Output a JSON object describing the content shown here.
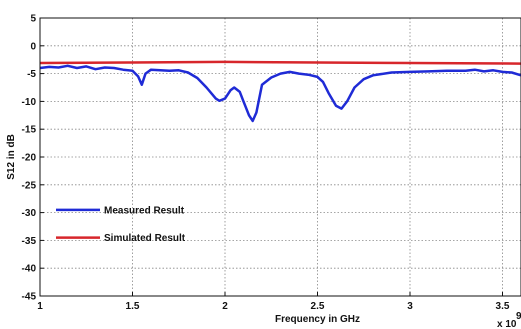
{
  "chart_data": {
    "type": "line",
    "xlabel": "Frequency in GHz",
    "ylabel": "S12 in dB",
    "x_exponent_label": "x 10",
    "x_exponent_power": "9",
    "xlim": [
      1,
      3.6
    ],
    "ylim": [
      -45,
      5
    ],
    "x_ticks": [
      1,
      1.5,
      2,
      2.5,
      3,
      3.5
    ],
    "x_tick_labels": [
      "1",
      "1.5",
      "2",
      "2.5",
      "3",
      "3.5"
    ],
    "y_ticks": [
      5,
      0,
      -5,
      -10,
      -15,
      -20,
      -25,
      -30,
      -35,
      -40,
      -45
    ],
    "y_tick_labels": [
      "5",
      "0",
      "-5",
      "-10",
      "-15",
      "-20",
      "-25",
      "-30",
      "-35",
      "-40",
      "-45"
    ],
    "grid": true,
    "legend_placement": "lower-left",
    "series": [
      {
        "name": "Measured Result",
        "color": "#1f2bd6",
        "points": [
          [
            1.0,
            -4.0
          ],
          [
            1.05,
            -3.8
          ],
          [
            1.1,
            -3.9
          ],
          [
            1.15,
            -3.6
          ],
          [
            1.2,
            -4.0
          ],
          [
            1.25,
            -3.7
          ],
          [
            1.3,
            -4.2
          ],
          [
            1.35,
            -3.9
          ],
          [
            1.4,
            -4.0
          ],
          [
            1.45,
            -4.3
          ],
          [
            1.5,
            -4.5
          ],
          [
            1.53,
            -5.5
          ],
          [
            1.55,
            -7.0
          ],
          [
            1.57,
            -5.0
          ],
          [
            1.6,
            -4.3
          ],
          [
            1.7,
            -4.5
          ],
          [
            1.75,
            -4.4
          ],
          [
            1.8,
            -4.8
          ],
          [
            1.85,
            -5.8
          ],
          [
            1.9,
            -7.5
          ],
          [
            1.95,
            -9.5
          ],
          [
            1.97,
            -9.9
          ],
          [
            2.0,
            -9.5
          ],
          [
            2.03,
            -8.0
          ],
          [
            2.05,
            -7.5
          ],
          [
            2.08,
            -8.3
          ],
          [
            2.1,
            -10.0
          ],
          [
            2.13,
            -12.5
          ],
          [
            2.15,
            -13.5
          ],
          [
            2.17,
            -12.0
          ],
          [
            2.2,
            -7.0
          ],
          [
            2.25,
            -5.7
          ],
          [
            2.3,
            -5.0
          ],
          [
            2.35,
            -4.7
          ],
          [
            2.4,
            -5.0
          ],
          [
            2.45,
            -5.2
          ],
          [
            2.5,
            -5.6
          ],
          [
            2.53,
            -6.5
          ],
          [
            2.56,
            -8.5
          ],
          [
            2.6,
            -10.8
          ],
          [
            2.63,
            -11.3
          ],
          [
            2.66,
            -10.0
          ],
          [
            2.7,
            -7.5
          ],
          [
            2.75,
            -6.0
          ],
          [
            2.8,
            -5.3
          ],
          [
            2.9,
            -4.8
          ],
          [
            3.0,
            -4.7
          ],
          [
            3.1,
            -4.6
          ],
          [
            3.2,
            -4.5
          ],
          [
            3.3,
            -4.5
          ],
          [
            3.35,
            -4.3
          ],
          [
            3.4,
            -4.6
          ],
          [
            3.45,
            -4.4
          ],
          [
            3.5,
            -4.7
          ],
          [
            3.55,
            -4.8
          ],
          [
            3.6,
            -5.3
          ]
        ]
      },
      {
        "name": "Simulated Result",
        "color": "#d7262b",
        "points": [
          [
            1.0,
            -3.1
          ],
          [
            1.5,
            -3.0
          ],
          [
            2.0,
            -2.9
          ],
          [
            2.5,
            -3.0
          ],
          [
            3.0,
            -3.1
          ],
          [
            3.6,
            -3.2
          ]
        ]
      }
    ]
  }
}
